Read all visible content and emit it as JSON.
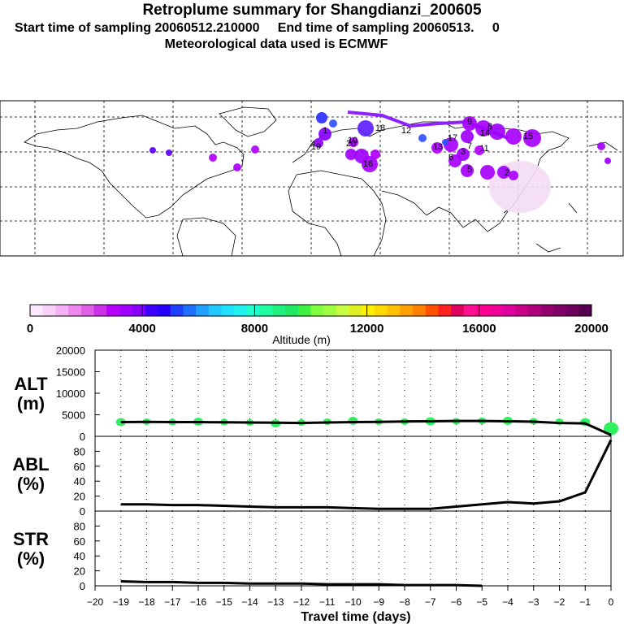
{
  "title": "Retroplume summary for Shangdianzi_200605",
  "subtitle_start": "Start time of sampling 20060512.210000",
  "subtitle_end": "End time of sampling 20060513.     0",
  "subtitle_met": "Meteorological data used is ECMWF",
  "colorbar": {
    "label": "Altitude (m)",
    "ticks": [
      "0",
      "4000",
      "8000",
      "12000",
      "16000",
      "20000"
    ],
    "colors": [
      "#fce8fc",
      "#f8d0f8",
      "#f4b0f4",
      "#ee88ee",
      "#e060e8",
      "#cc30e8",
      "#b800ff",
      "#a000ff",
      "#8800ff",
      "#4000ff",
      "#2800ff",
      "#2040ff",
      "#2070ff",
      "#20a0ff",
      "#20c8ff",
      "#20e0ff",
      "#20f0f0",
      "#20ffd0",
      "#20ffa0",
      "#20f080",
      "#20e860",
      "#40f040",
      "#80ff40",
      "#a0ff40",
      "#c8ff40",
      "#e0f020",
      "#fff000",
      "#ffd800",
      "#ffc000",
      "#ffa000",
      "#ff8000",
      "#ff5000",
      "#ff2020",
      "#e00060",
      "#ff1090",
      "#ff0090",
      "#f00098",
      "#e000a0",
      "#cc0088",
      "#b0007c",
      "#940070",
      "#800068",
      "#6c005c",
      "#580050"
    ]
  },
  "map_labels": [
    "6",
    "1",
    "18",
    "20",
    "10",
    "19",
    "16",
    "9",
    "8",
    "7",
    "12",
    "13",
    "4",
    "17",
    "5",
    "3",
    "14",
    "15",
    "11",
    "2"
  ],
  "chart_data": [
    {
      "type": "line",
      "name": "ALT",
      "ylabel": "ALT\n(m)",
      "ylabel_line1": "ALT",
      "ylabel_line2": "(m)",
      "ylim": [
        0,
        20000
      ],
      "yticks": [
        0,
        5000,
        10000,
        15000,
        20000
      ],
      "ytick_labels": [
        "0",
        "5000",
        "10000",
        "15000",
        "20000"
      ],
      "x": [
        -19,
        -18,
        -17,
        -16,
        -15,
        -14,
        -13,
        -12,
        -11,
        -10,
        -9,
        -8,
        -7,
        -6,
        -5,
        -4,
        -3,
        -2,
        -1,
        0
      ],
      "values": [
        3300,
        3350,
        3300,
        3300,
        3250,
        3200,
        3150,
        3100,
        3200,
        3300,
        3350,
        3450,
        3500,
        3550,
        3550,
        3500,
        3400,
        3100,
        3000,
        300
      ],
      "scatter": {
        "color": "#30f060",
        "points": [
          {
            "x": -19,
            "y": 3300
          },
          {
            "x": -18,
            "y": 3400
          },
          {
            "x": -17,
            "y": 3300
          },
          {
            "x": -16,
            "y": 3400
          },
          {
            "x": -15,
            "y": 3300
          },
          {
            "x": -14,
            "y": 3200
          },
          {
            "x": -13,
            "y": 3000
          },
          {
            "x": -12,
            "y": 3200
          },
          {
            "x": -11,
            "y": 3400
          },
          {
            "x": -10,
            "y": 3600
          },
          {
            "x": -9,
            "y": 3400
          },
          {
            "x": -8,
            "y": 3400
          },
          {
            "x": -7,
            "y": 3500
          },
          {
            "x": -6,
            "y": 3500
          },
          {
            "x": -5,
            "y": 3600
          },
          {
            "x": -4,
            "y": 3600
          },
          {
            "x": -3,
            "y": 3500
          },
          {
            "x": -2,
            "y": 3400
          },
          {
            "x": -1,
            "y": 3300
          },
          {
            "x": 0,
            "y": 1800
          }
        ]
      }
    },
    {
      "type": "line",
      "name": "ABL",
      "ylabel": "ABL\n(%)",
      "ylabel_line1": "ABL",
      "ylabel_line2": "(%)",
      "ylim": [
        0,
        100
      ],
      "yticks": [
        0,
        20,
        40,
        60,
        80
      ],
      "ytick_labels": [
        "0",
        "20",
        "40",
        "60",
        "80"
      ],
      "x": [
        -19,
        -18,
        -17,
        -16,
        -15,
        -14,
        -13,
        -12,
        -11,
        -10,
        -9,
        -8,
        -7,
        -6,
        -5,
        -4,
        -3,
        -2,
        -1,
        0
      ],
      "values": [
        9,
        9,
        8,
        8,
        7,
        6,
        5,
        5,
        5,
        4,
        3,
        3,
        3,
        6,
        9,
        12,
        10,
        13,
        25,
        95
      ]
    },
    {
      "type": "line",
      "name": "STR",
      "ylabel": "STR\n(%)",
      "ylabel_line1": "STR",
      "ylabel_line2": "(%)",
      "ylim": [
        0,
        100
      ],
      "yticks": [
        0,
        20,
        40,
        60,
        80
      ],
      "ytick_labels": [
        "0",
        "20",
        "40",
        "60",
        "80"
      ],
      "x": [
        -19,
        -18,
        -17,
        -16,
        -15,
        -14,
        -13,
        -12,
        -11,
        -10,
        -9,
        -8,
        -7,
        -6,
        -5
      ],
      "values": [
        6,
        5,
        5,
        4,
        4,
        3,
        3,
        3,
        2,
        2,
        2,
        1,
        1,
        1,
        0
      ]
    }
  ],
  "xaxis": {
    "label": "Travel time (days)",
    "range": [
      -20,
      0
    ],
    "tick_labels": [
      "−20",
      "−19",
      "−18",
      "−17",
      "−16",
      "−15",
      "−14",
      "−13",
      "−12",
      "−11",
      "−10",
      "−9",
      "−8",
      "−7",
      "−6",
      "−5",
      "−4",
      "−3",
      "−2",
      "−1",
      "0"
    ]
  }
}
